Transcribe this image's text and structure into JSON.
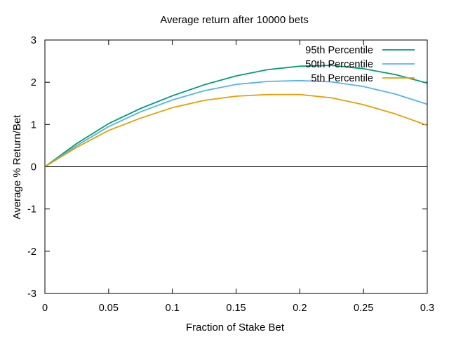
{
  "chart_data": {
    "type": "line",
    "title": "Average return after 10000 bets",
    "xlabel": "Fraction of Stake Bet",
    "ylabel": "Average % Return/Bet",
    "xlim": [
      0,
      0.3
    ],
    "ylim": [
      -3,
      3
    ],
    "x_ticks": [
      0,
      0.05,
      0.1,
      0.15,
      0.2,
      0.25,
      0.3
    ],
    "x_tick_labels": [
      "0",
      "0.05",
      "0.1",
      "0.15",
      "0.2",
      "0.25",
      "0.3"
    ],
    "y_ticks": [
      -3,
      -2,
      -1,
      0,
      1,
      2,
      3
    ],
    "y_tick_labels": [
      "-3",
      "-2",
      "-1",
      "0",
      "1",
      "2",
      "3"
    ],
    "zero_line": true,
    "grid": false,
    "legend_position": "top-right",
    "x": [
      0,
      0.025,
      0.05,
      0.075,
      0.1,
      0.125,
      0.15,
      0.175,
      0.2,
      0.225,
      0.25,
      0.275,
      0.3
    ],
    "series": [
      {
        "name": "95th Percentile",
        "color": "#009e73",
        "values": [
          0,
          0.55,
          1.02,
          1.38,
          1.68,
          1.94,
          2.15,
          2.3,
          2.38,
          2.4,
          2.32,
          2.18,
          1.98
        ]
      },
      {
        "name": "50th Percentile",
        "color": "#56b4e9",
        "values": [
          0,
          0.5,
          0.95,
          1.3,
          1.58,
          1.8,
          1.95,
          2.02,
          2.04,
          2.01,
          1.9,
          1.72,
          1.48
        ]
      },
      {
        "name": "5th Percentile",
        "color": "#e69f00",
        "values": [
          0,
          0.46,
          0.86,
          1.15,
          1.4,
          1.57,
          1.67,
          1.71,
          1.71,
          1.63,
          1.47,
          1.25,
          0.98
        ]
      }
    ]
  }
}
